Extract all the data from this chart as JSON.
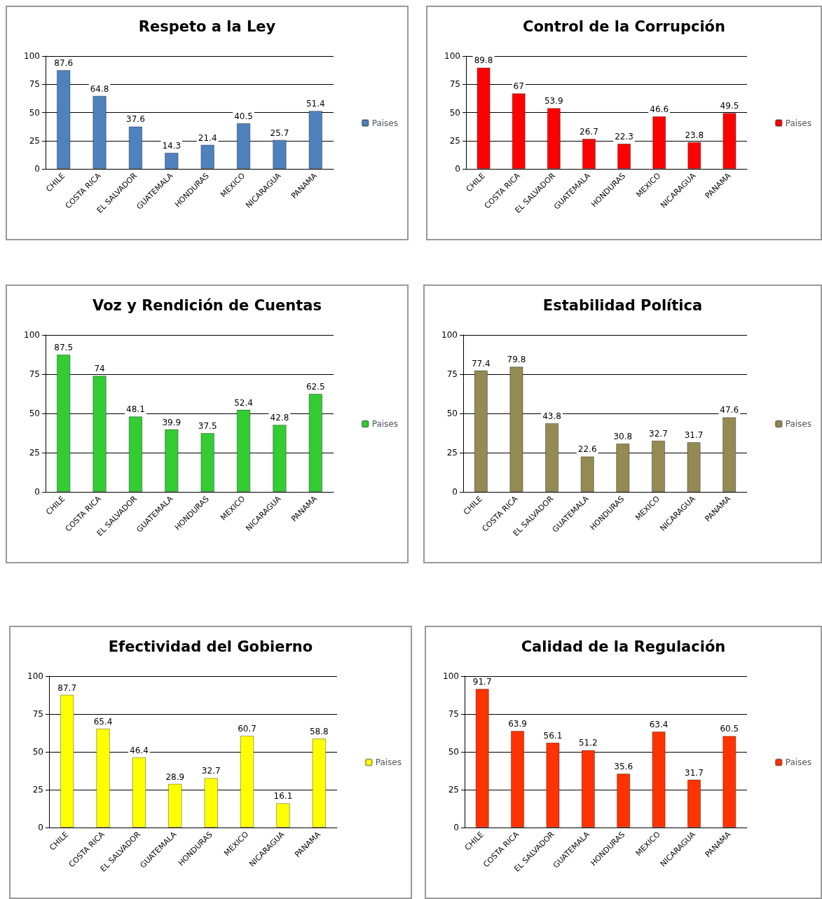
{
  "chart_data": [
    {
      "type": "bar",
      "title": "Respeto a la Ley",
      "categories": [
        "CHILE",
        "COSTA RICA",
        "EL SALVADOR",
        "GUATEMALA",
        "HONDURAS",
        "MEXICO",
        "NICARAGUA",
        "PANAMA"
      ],
      "series": [
        {
          "name": "Paises",
          "color": "#4f81bd",
          "values": [
            87.6,
            64.8,
            37.6,
            14.3,
            21.4,
            40.5,
            25.7,
            51.4
          ]
        }
      ],
      "ylim": [
        0,
        100
      ],
      "yticks": [
        0,
        25,
        50,
        75,
        100
      ],
      "grid": "y",
      "legend": "right",
      "data_labels": true
    },
    {
      "type": "bar",
      "title": "Control de la Corrupción",
      "categories": [
        "CHILE",
        "COSTA RICA",
        "EL SALVADOR",
        "GUATEMALA",
        "HONDURAS",
        "MEXICO",
        "NICARAGUA",
        "PANAMA"
      ],
      "series": [
        {
          "name": "Paises",
          "color": "#ff0000",
          "values": [
            89.8,
            67,
            53.9,
            26.7,
            22.3,
            46.6,
            23.8,
            49.5
          ]
        }
      ],
      "ylim": [
        0,
        100
      ],
      "yticks": [
        0,
        25,
        50,
        75,
        100
      ],
      "grid": "y",
      "legend": "right",
      "data_labels": true
    },
    {
      "type": "bar",
      "title": "Voz y Rendición de Cuentas",
      "categories": [
        "CHILE",
        "COSTA RICA",
        "EL SALVADOR",
        "GUATEMALA",
        "HONDURAS",
        "MEXICO",
        "NICARAGUA",
        "PANAMA"
      ],
      "series": [
        {
          "name": "Paises",
          "color": "#33cc33",
          "values": [
            87.5,
            74,
            48.1,
            39.9,
            37.5,
            52.4,
            42.8,
            62.5
          ]
        }
      ],
      "ylim": [
        0,
        100
      ],
      "yticks": [
        0,
        25,
        50,
        75,
        100
      ],
      "grid": "y",
      "legend": "right",
      "data_labels": true
    },
    {
      "type": "bar",
      "title": "Estabilidad Política",
      "categories": [
        "CHILE",
        "COSTA RICA",
        "EL SALVADOR",
        "GUATEMALA",
        "HONDURAS",
        "MEXICO",
        "NICARAGUA",
        "PANAMA"
      ],
      "series": [
        {
          "name": "Paises",
          "color": "#948a54",
          "values": [
            77.4,
            79.8,
            43.8,
            22.6,
            30.8,
            32.7,
            31.7,
            47.6
          ]
        }
      ],
      "ylim": [
        0,
        100
      ],
      "yticks": [
        0,
        25,
        50,
        75,
        100
      ],
      "grid": "y",
      "legend": "right",
      "data_labels": true
    },
    {
      "type": "bar",
      "title": "Efectividad del Gobierno",
      "categories": [
        "CHILE",
        "COSTA RICA",
        "EL SALVADOR",
        "GUATEMALA",
        "HONDURAS",
        "MEXICO",
        "NICARAGUA",
        "PANAMA"
      ],
      "series": [
        {
          "name": "Paises",
          "color": "#ffff00",
          "values": [
            87.7,
            65.4,
            46.4,
            28.9,
            32.7,
            60.7,
            16.1,
            58.8
          ]
        }
      ],
      "ylim": [
        0,
        100
      ],
      "yticks": [
        0,
        25,
        50,
        75,
        100
      ],
      "grid": "y",
      "legend": "right",
      "data_labels": true
    },
    {
      "type": "bar",
      "title": "Calidad de la Regulación",
      "categories": [
        "CHILE",
        "COSTA RICA",
        "EL SALVADOR",
        "GUATEMALA",
        "HONDURAS",
        "MEXICO",
        "NICARAGUA",
        "PANAMA"
      ],
      "series": [
        {
          "name": "Paises",
          "color": "#ff3300",
          "values": [
            91.7,
            63.9,
            56.1,
            51.2,
            35.6,
            63.4,
            31.7,
            60.5
          ]
        }
      ],
      "ylim": [
        0,
        100
      ],
      "yticks": [
        0,
        25,
        50,
        75,
        100
      ],
      "grid": "y",
      "legend": "right",
      "data_labels": true
    }
  ]
}
